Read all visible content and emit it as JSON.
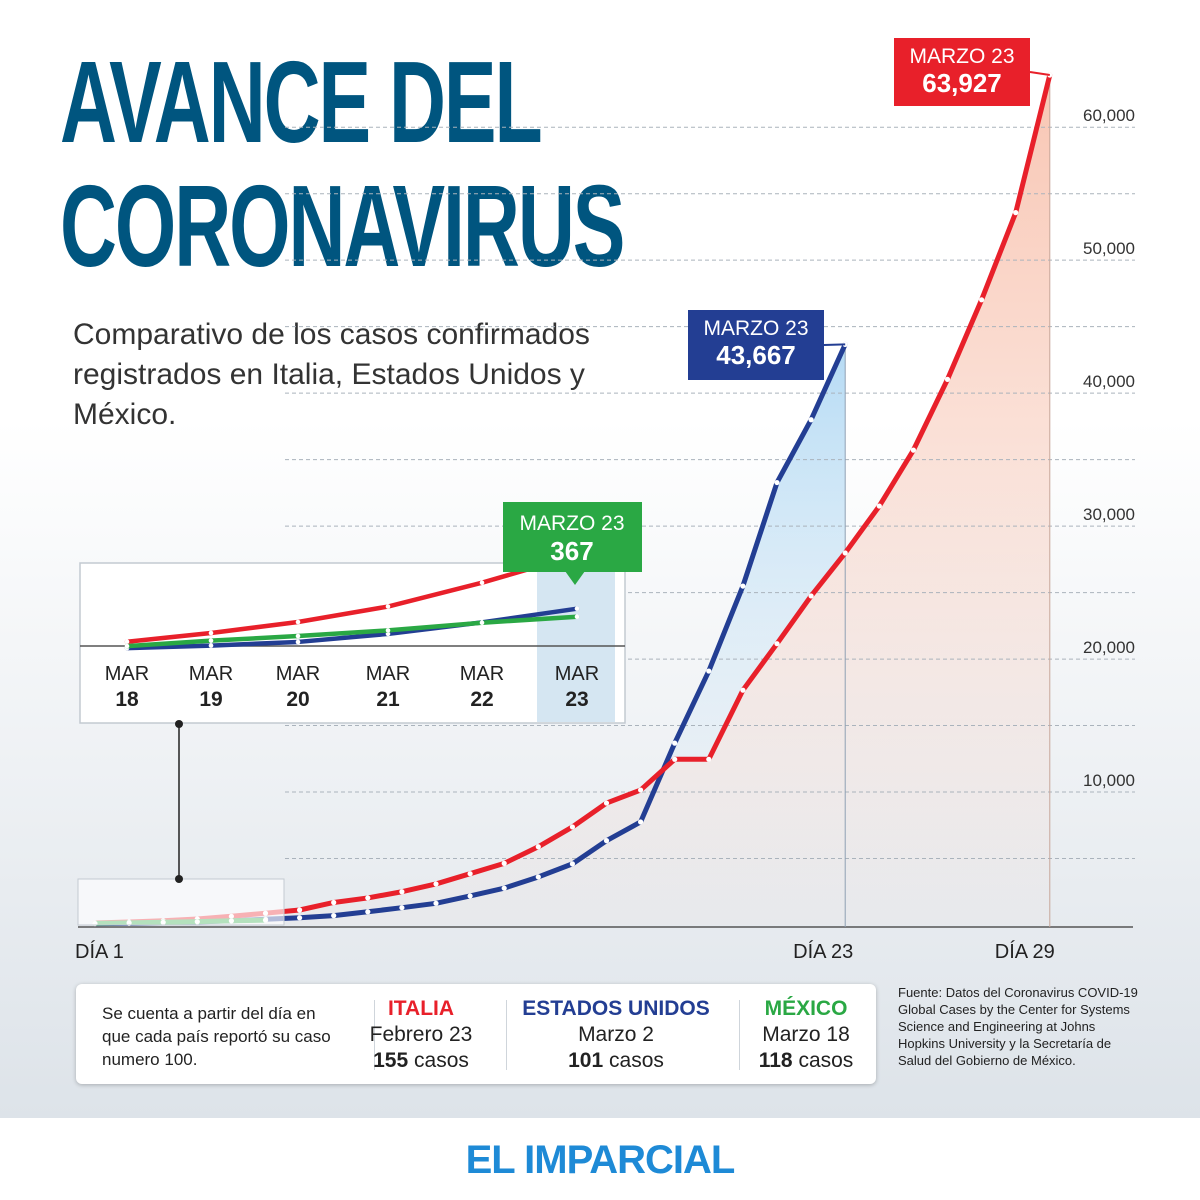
{
  "headline": [
    "AVANCE DEL",
    "CORONAVIRUS"
  ],
  "subtitle": "Comparativo de los casos confirmados registrados en Italia, Estados Unidos y México.",
  "brand": "EL IMPARCIAL",
  "chart_data": {
    "type": "line",
    "x_start_label": "DÍA 1",
    "x_tick_labels": [
      "DÍA 23",
      "DÍA 29"
    ],
    "y_ticks": [
      "10,000",
      "20,000",
      "30,000",
      "40,000",
      "50,000",
      "60,000"
    ],
    "ylim": [
      0,
      65000
    ],
    "grid": "dashed horizontal",
    "series": [
      {
        "name": "ITALIA",
        "color": "#e8202a",
        "x": [
          1,
          2,
          3,
          4,
          5,
          6,
          7,
          8,
          9,
          10,
          11,
          12,
          13,
          14,
          15,
          16,
          17,
          18,
          19,
          20,
          21,
          22,
          23,
          24,
          25,
          26,
          27,
          28,
          29
        ],
        "values": [
          155,
          229,
          322,
          453,
          655,
          888,
          1128,
          1694,
          2036,
          2502,
          3089,
          3858,
          4636,
          5883,
          7375,
          9172,
          10149,
          12462,
          12462,
          17660,
          21157,
          24747,
          27980,
          31506,
          35713,
          41035,
          47021,
          53578,
          63927
        ],
        "end_label": "MARZO 23",
        "end_value": "63,927"
      },
      {
        "name": "ESTADOS UNIDOS",
        "color": "#233e93",
        "x": [
          1,
          2,
          3,
          4,
          5,
          6,
          7,
          8,
          9,
          10,
          11,
          12,
          13,
          14,
          15,
          16,
          17,
          18,
          19,
          20,
          21,
          22,
          23
        ],
        "values": [
          101,
          122,
          153,
          221,
          319,
          435,
          541,
          704,
          994,
          1301,
          1630,
          2183,
          2770,
          3613,
          4596,
          6344,
          7749,
          13677,
          19100,
          25489,
          33276,
          38000,
          43667
        ],
        "end_label": "MARZO 23",
        "end_value": "43,667"
      },
      {
        "name": "MÉXICO",
        "color": "#2aa844",
        "x": [
          1,
          2,
          3,
          4,
          5,
          6
        ],
        "values": [
          118,
          164,
          203,
          251,
          316,
          367
        ],
        "end_label": "MARZO 23",
        "end_value": "367"
      }
    ],
    "inset": {
      "month": "MAR",
      "days": [
        "18",
        "19",
        "20",
        "21",
        "22",
        "23"
      ]
    }
  },
  "note": {
    "text": "Se cuenta a partir del día en que cada país reportó su caso numero 100.",
    "countries": [
      {
        "name": "ITALIA",
        "date": "Febrero 23",
        "count": "155",
        "unit": "casos",
        "color": "#e8202a"
      },
      {
        "name": "ESTADOS UNIDOS",
        "date": "Marzo 2",
        "count": "101",
        "unit": "casos",
        "color": "#233e93"
      },
      {
        "name": "MÉXICO",
        "date": "Marzo 18",
        "count": "118",
        "unit": "casos",
        "color": "#2aa844"
      }
    ]
  },
  "source": "Fuente:  Datos del Coronavirus COVID-19 Global Cases by the Center for Systems Science and Engineering at Johns Hopkins University y la Secretaría de Salud del Gobierno de México."
}
